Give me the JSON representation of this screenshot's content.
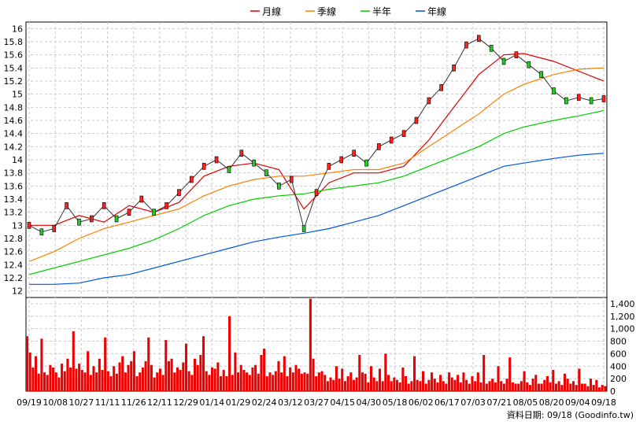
{
  "chart_data": {
    "type": "line",
    "legend": [
      {
        "name": "月線",
        "color": "#e00000"
      },
      {
        "name": "季線",
        "color": "#ff7f00"
      },
      {
        "name": "半年",
        "color": "#00cc00"
      },
      {
        "name": "年線",
        "color": "#0055dd"
      }
    ],
    "legend_position": "top-center",
    "grid": true,
    "price_axis": {
      "ticks": [
        "12",
        "12.2",
        "12.4",
        "12.6",
        "12.8",
        "13",
        "13.2",
        "13.4",
        "13.6",
        "13.8",
        "14",
        "14.2",
        "14.4",
        "14.6",
        "14.8",
        "15",
        "15.2",
        "15.4",
        "15.6",
        "15.8",
        "16"
      ],
      "ylim": [
        11.9,
        16.1
      ]
    },
    "volume_axis": {
      "ticks": [
        "0",
        "200",
        "400",
        "600",
        "800",
        "1,000",
        "1,200",
        "1,400"
      ],
      "ylim": [
        0,
        1500
      ]
    },
    "x_ticks": [
      "09/19",
      "10/08",
      "10/27",
      "11/11",
      "11/26",
      "12/11",
      "12/29",
      "01/14",
      "01/29",
      "02/24",
      "03/12",
      "03/27",
      "04/15",
      "04/30",
      "05/18",
      "06/02",
      "06/17",
      "07/03",
      "07/21",
      "08/05",
      "08/20",
      "09/04",
      "09/18"
    ],
    "series": [
      {
        "name": "月線",
        "x": [
          0,
          10,
          20,
          30,
          40,
          50,
          60,
          70,
          80,
          90,
          100,
          110,
          120,
          130,
          140,
          150,
          160,
          170,
          180,
          190,
          198,
          210,
          220,
          230
        ],
        "values": [
          13.0,
          13.0,
          13.15,
          13.05,
          13.3,
          13.2,
          13.35,
          13.75,
          13.9,
          13.95,
          13.85,
          13.25,
          13.65,
          13.8,
          13.8,
          13.9,
          14.3,
          14.8,
          15.3,
          15.6,
          15.62,
          15.5,
          15.35,
          15.2
        ]
      },
      {
        "name": "季線",
        "x": [
          0,
          10,
          20,
          30,
          40,
          50,
          60,
          70,
          80,
          90,
          100,
          110,
          120,
          130,
          140,
          150,
          160,
          170,
          180,
          190,
          198,
          210,
          220,
          230
        ],
        "values": [
          12.45,
          12.6,
          12.8,
          12.95,
          13.05,
          13.15,
          13.25,
          13.45,
          13.6,
          13.7,
          13.75,
          13.75,
          13.8,
          13.85,
          13.85,
          13.95,
          14.2,
          14.45,
          14.7,
          15.0,
          15.15,
          15.3,
          15.38,
          15.4
        ]
      },
      {
        "name": "半年",
        "x": [
          0,
          10,
          20,
          30,
          40,
          50,
          60,
          70,
          80,
          90,
          100,
          110,
          120,
          130,
          140,
          150,
          160,
          170,
          180,
          190,
          198,
          210,
          220,
          230
        ],
        "values": [
          12.25,
          12.35,
          12.45,
          12.55,
          12.65,
          12.78,
          12.95,
          13.15,
          13.3,
          13.4,
          13.45,
          13.48,
          13.55,
          13.6,
          13.65,
          13.75,
          13.9,
          14.05,
          14.2,
          14.4,
          14.5,
          14.6,
          14.67,
          14.75
        ]
      },
      {
        "name": "年線",
        "x": [
          0,
          10,
          20,
          30,
          40,
          50,
          60,
          70,
          80,
          90,
          100,
          110,
          120,
          130,
          140,
          150,
          160,
          170,
          180,
          190,
          198,
          210,
          220,
          230
        ],
        "values": [
          12.1,
          12.1,
          12.12,
          12.2,
          12.25,
          12.35,
          12.45,
          12.55,
          12.65,
          12.75,
          12.82,
          12.88,
          12.95,
          13.05,
          13.15,
          13.3,
          13.45,
          13.6,
          13.75,
          13.9,
          13.95,
          14.02,
          14.07,
          14.1
        ]
      }
    ],
    "close_price": {
      "x": [
        0,
        5,
        10,
        15,
        20,
        25,
        30,
        35,
        40,
        45,
        50,
        55,
        60,
        65,
        70,
        75,
        80,
        85,
        90,
        95,
        100,
        105,
        110,
        115,
        120,
        125,
        130,
        135,
        140,
        145,
        150,
        155,
        160,
        165,
        170,
        175,
        180,
        185,
        190,
        195,
        200,
        205,
        210,
        215,
        220,
        225,
        230
      ],
      "values": [
        13.0,
        12.9,
        12.95,
        13.3,
        13.05,
        13.1,
        13.3,
        13.1,
        13.2,
        13.4,
        13.2,
        13.3,
        13.5,
        13.7,
        13.9,
        14.0,
        13.85,
        14.1,
        13.95,
        13.8,
        13.6,
        13.7,
        12.95,
        13.5,
        13.9,
        14.0,
        14.1,
        13.95,
        14.2,
        14.3,
        14.4,
        14.6,
        14.9,
        15.1,
        15.4,
        15.75,
        15.85,
        15.7,
        15.5,
        15.6,
        15.45,
        15.3,
        15.05,
        14.9,
        14.95,
        14.9,
        14.93
      ]
    },
    "volume": {
      "unit_labels": "thousands",
      "daily": [
        880,
        620,
        380,
        560,
        280,
        840,
        300,
        260,
        420,
        380,
        300,
        220,
        440,
        320,
        520,
        380,
        960,
        360,
        440,
        340,
        300,
        640,
        260,
        400,
        300,
        520,
        340,
        860,
        320,
        240,
        400,
        280,
        460,
        560,
        300,
        420,
        480,
        640,
        240,
        300,
        380,
        480,
        860,
        420,
        220,
        300,
        360,
        260,
        820,
        480,
        520,
        300,
        380,
        340,
        460,
        760,
        320,
        260,
        520,
        420,
        580,
        880,
        320,
        260,
        380,
        360,
        460,
        240,
        340,
        240,
        1200,
        260,
        620,
        300,
        420,
        340,
        300,
        260,
        380,
        420,
        280,
        580,
        680,
        240,
        300,
        260,
        320,
        480,
        300,
        560,
        240,
        380,
        300,
        420,
        360,
        280,
        300,
        280,
        1480,
        520,
        240,
        300,
        320,
        260,
        160,
        220,
        180,
        400,
        200,
        360,
        160,
        240,
        300,
        180,
        220,
        580,
        300,
        280,
        140,
        400,
        220,
        160,
        360,
        160,
        600,
        260,
        160,
        220,
        180,
        140,
        380,
        240,
        120,
        160,
        560,
        180,
        160,
        320,
        120,
        180,
        300,
        200,
        140,
        260,
        160,
        120,
        300,
        220,
        180,
        260,
        140,
        300,
        180,
        120,
        240,
        160,
        300,
        140,
        580,
        120,
        160,
        200,
        140,
        400,
        160,
        120,
        200,
        540,
        140,
        120,
        120,
        160,
        320,
        140,
        100,
        200,
        260,
        120,
        120,
        180,
        240,
        140,
        340,
        120,
        160,
        100,
        280,
        200,
        120,
        160,
        100,
        360,
        120,
        120,
        80,
        200,
        100,
        180,
        60,
        100,
        80
      ]
    }
  },
  "footer_note": "資料日期: 09/18  (Goodinfo.tw)"
}
